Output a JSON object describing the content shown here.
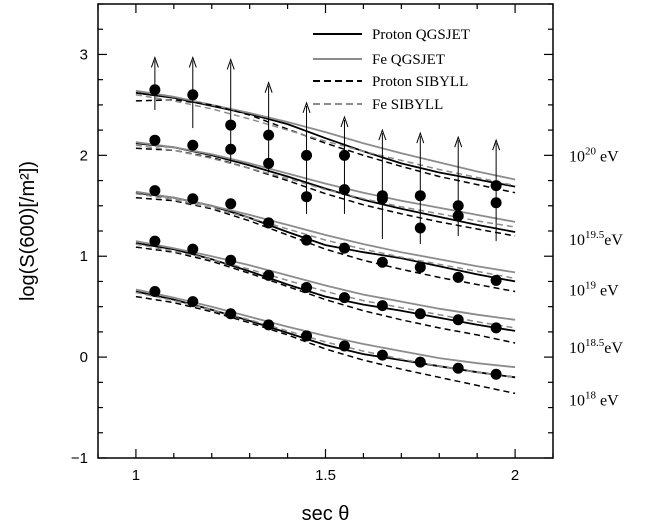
{
  "chart_data": {
    "type": "scatter",
    "xlabel": "sec θ",
    "ylabel": "log(S(600)[/m²])",
    "xlim": [
      0.9,
      2.1
    ],
    "ylim": [
      -1,
      3.5
    ],
    "xticks": [
      1,
      1.5,
      2
    ],
    "yticks": [
      -1,
      0,
      1,
      2,
      3
    ],
    "legend": {
      "placement": "top-right",
      "entries": [
        {
          "label": "Proton QGSJET",
          "color": "#000000",
          "style": "solid"
        },
        {
          "label": "Fe QGSJET",
          "color": "#8c8c8c",
          "style": "solid"
        },
        {
          "label": "Proton SIBYLL",
          "color": "#000000",
          "style": "dashed"
        },
        {
          "label": "Fe SIBYLL",
          "color": "#8c8c8c",
          "style": "dashed"
        }
      ]
    },
    "energies": [
      {
        "base": "10",
        "exp": "20",
        "unit": "eV",
        "y": 2.0
      },
      {
        "base": "10",
        "exp": "19.5",
        "unit": "eV",
        "y": 1.17
      },
      {
        "base": "10",
        "exp": "19",
        "unit": "eV",
        "y": 0.67
      },
      {
        "base": "10",
        "exp": "18.5",
        "unit": "eV",
        "y": 0.1
      },
      {
        "base": "10",
        "exp": "18",
        "unit": "eV",
        "y": -0.42
      }
    ],
    "groups": [
      {
        "points": [
          {
            "x": 1.05,
            "y": 0.65
          },
          {
            "x": 1.15,
            "y": 0.55
          },
          {
            "x": 1.25,
            "y": 0.43
          },
          {
            "x": 1.35,
            "y": 0.32
          },
          {
            "x": 1.45,
            "y": 0.21
          },
          {
            "x": 1.55,
            "y": 0.11
          },
          {
            "x": 1.65,
            "y": 0.02
          },
          {
            "x": 1.75,
            "y": -0.05
          },
          {
            "x": 1.85,
            "y": -0.11
          },
          {
            "x": 1.95,
            "y": -0.17
          }
        ],
        "lines": {
          "proton_qgsjet": {
            "x": [
              1.0,
              1.1,
              1.2,
              1.3,
              1.4,
              1.5,
              1.6,
              1.7,
              1.8,
              1.9,
              2.0
            ],
            "y": [
              0.65,
              0.57,
              0.47,
              0.36,
              0.24,
              0.12,
              0.03,
              -0.03,
              -0.09,
              -0.15,
              -0.2
            ]
          },
          "fe_qgsjet": {
            "x": [
              1.0,
              1.1,
              1.2,
              1.3,
              1.4,
              1.5,
              1.6,
              1.7,
              1.8,
              1.9,
              2.0
            ],
            "y": [
              0.67,
              0.59,
              0.5,
              0.4,
              0.3,
              0.21,
              0.13,
              0.06,
              -0.01,
              -0.06,
              -0.1
            ]
          },
          "proton_sibyll": {
            "x": [
              1.0,
              1.1,
              1.2,
              1.3,
              1.4,
              1.5,
              1.6,
              1.7,
              1.8,
              1.9,
              2.0
            ],
            "y": [
              0.6,
              0.54,
              0.45,
              0.34,
              0.22,
              0.08,
              -0.03,
              -0.12,
              -0.2,
              -0.28,
              -0.36
            ]
          },
          "fe_sibyll": {
            "x": [
              1.0,
              1.1,
              1.2,
              1.3,
              1.4,
              1.5,
              1.6,
              1.7,
              1.8,
              1.9,
              2.0
            ],
            "y": [
              0.64,
              0.56,
              0.47,
              0.37,
              0.26,
              0.15,
              0.06,
              -0.02,
              -0.09,
              -0.15,
              -0.2
            ]
          }
        }
      },
      {
        "points": [
          {
            "x": 1.05,
            "y": 1.15
          },
          {
            "x": 1.15,
            "y": 1.07
          },
          {
            "x": 1.25,
            "y": 0.96
          },
          {
            "x": 1.35,
            "y": 0.81
          },
          {
            "x": 1.45,
            "y": 0.69
          },
          {
            "x": 1.55,
            "y": 0.59
          },
          {
            "x": 1.65,
            "y": 0.51
          },
          {
            "x": 1.75,
            "y": 0.43
          },
          {
            "x": 1.85,
            "y": 0.37
          },
          {
            "x": 1.95,
            "y": 0.29
          }
        ],
        "lines": {
          "proton_qgsjet": {
            "x": [
              1.0,
              1.1,
              1.2,
              1.3,
              1.4,
              1.5,
              1.6,
              1.7,
              1.8,
              1.9,
              2.0
            ],
            "y": [
              1.13,
              1.07,
              0.97,
              0.85,
              0.72,
              0.6,
              0.52,
              0.46,
              0.39,
              0.32,
              0.26
            ]
          },
          "fe_qgsjet": {
            "x": [
              1.0,
              1.1,
              1.2,
              1.3,
              1.4,
              1.5,
              1.6,
              1.7,
              1.8,
              1.9,
              2.0
            ],
            "y": [
              1.15,
              1.08,
              1.0,
              0.91,
              0.81,
              0.71,
              0.62,
              0.55,
              0.48,
              0.42,
              0.37
            ]
          },
          "proton_sibyll": {
            "x": [
              1.0,
              1.1,
              1.2,
              1.3,
              1.4,
              1.5,
              1.6,
              1.7,
              1.8,
              1.9,
              2.0
            ],
            "y": [
              1.09,
              1.04,
              0.95,
              0.83,
              0.7,
              0.57,
              0.46,
              0.37,
              0.29,
              0.22,
              0.14
            ]
          },
          "fe_sibyll": {
            "x": [
              1.0,
              1.1,
              1.2,
              1.3,
              1.4,
              1.5,
              1.6,
              1.7,
              1.8,
              1.9,
              2.0
            ],
            "y": [
              1.12,
              1.05,
              0.97,
              0.87,
              0.76,
              0.65,
              0.56,
              0.49,
              0.42,
              0.35,
              0.29
            ]
          }
        }
      },
      {
        "points": [
          {
            "x": 1.05,
            "y": 1.65
          },
          {
            "x": 1.15,
            "y": 1.57
          },
          {
            "x": 1.25,
            "y": 1.52
          },
          {
            "x": 1.35,
            "y": 1.33
          },
          {
            "x": 1.45,
            "y": 1.16
          },
          {
            "x": 1.55,
            "y": 1.08
          },
          {
            "x": 1.65,
            "y": 0.94
          },
          {
            "x": 1.75,
            "y": 0.89
          },
          {
            "x": 1.85,
            "y": 0.79
          },
          {
            "x": 1.95,
            "y": 0.76
          }
        ],
        "lines": {
          "proton_qgsjet": {
            "x": [
              1.0,
              1.1,
              1.2,
              1.3,
              1.4,
              1.5,
              1.6,
              1.7,
              1.8,
              1.9,
              2.0
            ],
            "y": [
              1.63,
              1.58,
              1.5,
              1.38,
              1.24,
              1.11,
              1.04,
              0.98,
              0.9,
              0.82,
              0.75
            ]
          },
          "fe_qgsjet": {
            "x": [
              1.0,
              1.1,
              1.2,
              1.3,
              1.4,
              1.5,
              1.6,
              1.7,
              1.8,
              1.9,
              2.0
            ],
            "y": [
              1.64,
              1.58,
              1.5,
              1.41,
              1.31,
              1.21,
              1.12,
              1.04,
              0.97,
              0.9,
              0.84
            ]
          },
          "proton_sibyll": {
            "x": [
              1.0,
              1.1,
              1.2,
              1.3,
              1.4,
              1.5,
              1.6,
              1.7,
              1.8,
              1.9,
              2.0
            ],
            "y": [
              1.58,
              1.55,
              1.47,
              1.35,
              1.21,
              1.07,
              0.96,
              0.87,
              0.79,
              0.72,
              0.65
            ]
          },
          "fe_sibyll": {
            "x": [
              1.0,
              1.1,
              1.2,
              1.3,
              1.4,
              1.5,
              1.6,
              1.7,
              1.8,
              1.9,
              2.0
            ],
            "y": [
              1.62,
              1.56,
              1.48,
              1.38,
              1.27,
              1.16,
              1.07,
              0.99,
              0.92,
              0.85,
              0.78
            ]
          }
        }
      },
      {
        "points": [
          {
            "x": 1.05,
            "y": 2.15
          },
          {
            "x": 1.15,
            "y": 2.1
          },
          {
            "x": 1.25,
            "y": 2.06
          },
          {
            "x": 1.35,
            "y": 1.92
          },
          {
            "x": 1.45,
            "y": 1.59
          },
          {
            "x": 1.55,
            "y": 1.66
          },
          {
            "x": 1.65,
            "y": 1.57
          },
          {
            "x": 1.75,
            "y": 1.28
          },
          {
            "x": 1.85,
            "y": 1.4
          },
          {
            "x": 1.95,
            "y": 1.53
          }
        ],
        "lines": {
          "proton_qgsjet": {
            "x": [
              1.0,
              1.1,
              1.2,
              1.3,
              1.4,
              1.5,
              1.6,
              1.7,
              1.8,
              1.9,
              2.0
            ],
            "y": [
              2.12,
              2.08,
              2.0,
              1.9,
              1.79,
              1.67,
              1.56,
              1.47,
              1.39,
              1.31,
              1.24
            ]
          },
          "fe_qgsjet": {
            "x": [
              1.0,
              1.1,
              1.2,
              1.3,
              1.4,
              1.5,
              1.6,
              1.7,
              1.8,
              1.9,
              2.0
            ],
            "y": [
              2.13,
              2.08,
              2.01,
              1.92,
              1.82,
              1.72,
              1.63,
              1.55,
              1.48,
              1.41,
              1.34
            ]
          },
          "proton_sibyll": {
            "x": [
              1.0,
              1.1,
              1.2,
              1.3,
              1.4,
              1.5,
              1.6,
              1.7,
              1.8,
              1.9,
              2.0
            ],
            "y": [
              2.07,
              2.05,
              1.98,
              1.87,
              1.75,
              1.62,
              1.51,
              1.42,
              1.34,
              1.27,
              1.2
            ]
          },
          "fe_sibyll": {
            "x": [
              1.0,
              1.1,
              1.2,
              1.3,
              1.4,
              1.5,
              1.6,
              1.7,
              1.8,
              1.9,
              2.0
            ],
            "y": [
              2.1,
              2.05,
              1.97,
              1.87,
              1.77,
              1.66,
              1.57,
              1.49,
              1.42,
              1.35,
              1.29
            ]
          }
        }
      },
      {
        "points": [
          {
            "x": 1.05,
            "y": 2.65
          },
          {
            "x": 1.15,
            "y": 2.6
          },
          {
            "x": 1.25,
            "y": 2.3
          },
          {
            "x": 1.35,
            "y": 2.2
          },
          {
            "x": 1.45,
            "y": 2.0
          },
          {
            "x": 1.55,
            "y": 2.0
          },
          {
            "x": 1.65,
            "y": 1.6
          },
          {
            "x": 1.75,
            "y": 1.6
          },
          {
            "x": 1.85,
            "y": 1.5
          },
          {
            "x": 1.95,
            "y": 1.7
          }
        ],
        "arrows": [
          {
            "x": 1.05,
            "y_low": 2.45,
            "y_high": 2.97
          },
          {
            "x": 1.15,
            "y_low": 2.27,
            "y_high": 2.97
          },
          {
            "x": 1.25,
            "y_low": 1.92,
            "y_high": 2.95
          },
          {
            "x": 1.35,
            "y_low": 1.83,
            "y_high": 2.72
          },
          {
            "x": 1.45,
            "y_low": 1.42,
            "y_high": 2.52
          },
          {
            "x": 1.55,
            "y_low": 1.42,
            "y_high": 2.38
          },
          {
            "x": 1.65,
            "y_low": 1.17,
            "y_high": 2.25
          },
          {
            "x": 1.75,
            "y_low": 1.12,
            "y_high": 2.22
          },
          {
            "x": 1.85,
            "y_low": 1.2,
            "y_high": 2.18
          },
          {
            "x": 1.95,
            "y_low": 1.15,
            "y_high": 2.15
          }
        ],
        "lines": {
          "proton_qgsjet": {
            "x": [
              1.0,
              1.1,
              1.2,
              1.3,
              1.4,
              1.5,
              1.6,
              1.7,
              1.8,
              1.9,
              2.0
            ],
            "y": [
              2.62,
              2.57,
              2.49,
              2.41,
              2.31,
              2.17,
              2.04,
              1.92,
              1.83,
              1.76,
              1.69
            ]
          },
          "fe_qgsjet": {
            "x": [
              1.0,
              1.1,
              1.2,
              1.3,
              1.4,
              1.5,
              1.6,
              1.7,
              1.8,
              1.9,
              2.0
            ],
            "y": [
              2.64,
              2.58,
              2.5,
              2.42,
              2.33,
              2.23,
              2.12,
              2.02,
              1.93,
              1.84,
              1.76
            ]
          },
          "proton_sibyll": {
            "x": [
              1.0,
              1.1,
              1.2,
              1.3,
              1.4,
              1.5,
              1.6,
              1.7,
              1.8,
              1.9,
              2.0
            ],
            "y": [
              2.54,
              2.55,
              2.5,
              2.4,
              2.26,
              2.12,
              2.0,
              1.89,
              1.79,
              1.71,
              1.63
            ]
          },
          "fe_sibyll": {
            "x": [
              1.0,
              1.1,
              1.2,
              1.3,
              1.4,
              1.5,
              1.6,
              1.7,
              1.8,
              1.9,
              2.0
            ],
            "y": [
              2.6,
              2.54,
              2.46,
              2.36,
              2.25,
              2.14,
              2.04,
              1.95,
              1.86,
              1.78,
              1.7
            ]
          }
        }
      }
    ]
  }
}
